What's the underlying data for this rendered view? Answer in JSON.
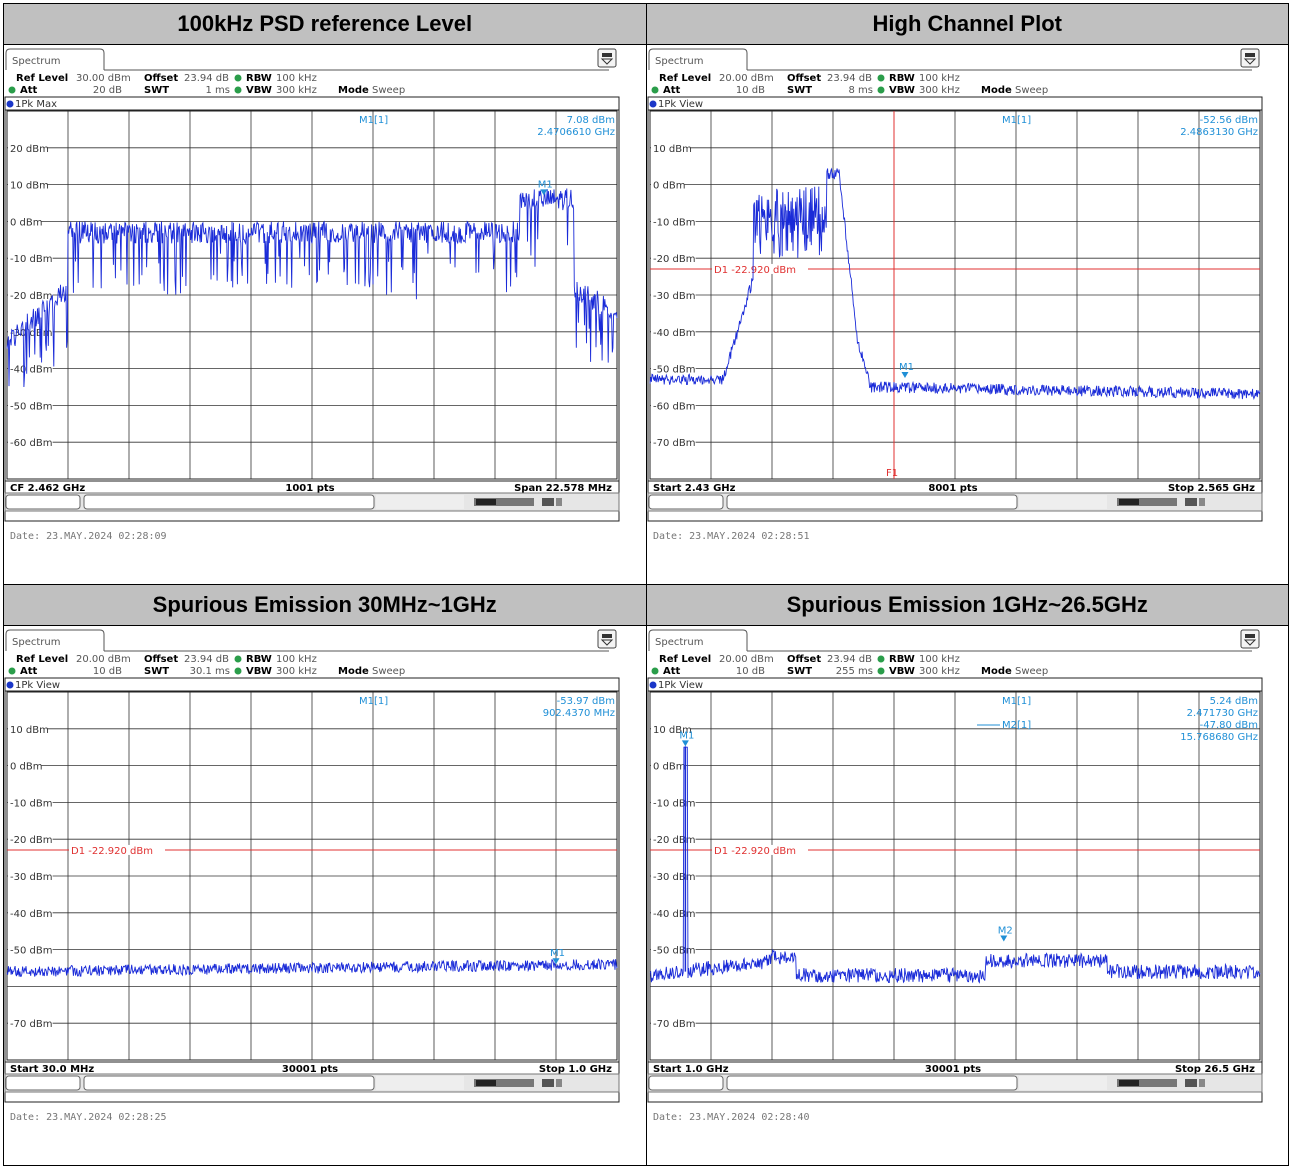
{
  "panels": [
    {
      "title": "100kHz PSD reference Level",
      "tab": "Spectrum",
      "ref_level_label": "Ref Level",
      "ref_level": "30.00 dBm",
      "offset_label": "Offset",
      "offset": "23.94 dB",
      "rbw_label": "RBW",
      "rbw": "100 kHz",
      "att_label": "Att",
      "att": "20 dB",
      "swt_label": "SWT",
      "swt": "1 ms",
      "vbw_label": "VBW",
      "vbw": "300 kHz",
      "mode_label": "Mode",
      "mode": "Sweep",
      "trace_label": "1Pk Max",
      "y_labels": [
        "",
        "20 dBm",
        "10 dBm",
        "0 dBm",
        "-10 dBm",
        "-20 dBm",
        "-30 dBm",
        "-40 dBm",
        "-50 dBm",
        "-60 dBm"
      ],
      "markers_info": [
        {
          "name": "M1[1]",
          "value": "7.08 dBm",
          "freq": "2.4706610 GHz"
        }
      ],
      "display_line": null,
      "f_line": null,
      "footer_left": "CF 2.462 GHz",
      "footer_center": "1001 pts",
      "footer_right": "Span 22.578 MHz",
      "date": "Date: 23.MAY.2024  02:28:09",
      "trace_kind": "psd",
      "marker_points": [
        {
          "label": "M1",
          "xf": 0.88,
          "y_db": 7.08
        }
      ],
      "top_db": 30
    },
    {
      "title": "High Channel Plot",
      "tab": "Spectrum",
      "ref_level_label": "Ref Level",
      "ref_level": "20.00 dBm",
      "offset_label": "Offset",
      "offset": "23.94 dB",
      "rbw_label": "RBW",
      "rbw": "100 kHz",
      "att_label": "Att",
      "att": "10 dB",
      "swt_label": "SWT",
      "swt": "8 ms",
      "vbw_label": "VBW",
      "vbw": "300 kHz",
      "mode_label": "Mode",
      "mode": "Sweep",
      "trace_label": "1Pk View",
      "y_labels": [
        "",
        "10 dBm",
        "0 dBm",
        "-10 dBm",
        "-20 dBm",
        "-30 dBm",
        "-40 dBm",
        "-50 dBm",
        "-60 dBm",
        "-70 dBm"
      ],
      "markers_info": [
        {
          "name": "M1[1]",
          "value": "-52.56 dBm",
          "freq": "2.4863130 GHz"
        }
      ],
      "display_line": {
        "label": "D1  -22.920 dBm",
        "db": -22.92
      },
      "f_line": {
        "label": "F1",
        "xf": 0.4
      },
      "footer_left": "Start 2.43 GHz",
      "footer_center": "8001 pts",
      "footer_right": "Stop 2.565 GHz",
      "date": "Date: 23.MAY.2024  02:28:51",
      "trace_kind": "band",
      "marker_points": [
        {
          "label": "M1",
          "xf": 0.418,
          "y_db": -52.56
        }
      ],
      "top_db": 20
    },
    {
      "title": "Spurious Emission 30MHz~1GHz",
      "tab": "Spectrum",
      "ref_level_label": "Ref Level",
      "ref_level": "20.00 dBm",
      "offset_label": "Offset",
      "offset": "23.94 dB",
      "rbw_label": "RBW",
      "rbw": "100 kHz",
      "att_label": "Att",
      "att": "10 dB",
      "swt_label": "SWT",
      "swt": "30.1 ms",
      "vbw_label": "VBW",
      "vbw": "300 kHz",
      "mode_label": "Mode",
      "mode": "Sweep",
      "trace_label": "1Pk View",
      "y_labels": [
        "",
        "10 dBm",
        "0 dBm",
        "-10 dBm",
        "-20 dBm",
        "-30 dBm",
        "-40 dBm",
        "-50 dBm",
        "",
        "-70 dBm"
      ],
      "markers_info": [
        {
          "name": "M1[1]",
          "value": "-53.97 dBm",
          "freq": "902.4370 MHz"
        }
      ],
      "display_line": {
        "label": "D1  -22.920 dBm",
        "db": -22.92
      },
      "f_line": null,
      "footer_left": "Start 30.0 MHz",
      "footer_center": "30001 pts",
      "footer_right": "Stop 1.0 GHz",
      "date": "Date: 23.MAY.2024  02:28:25",
      "trace_kind": "noise1",
      "marker_points": [
        {
          "label": "M1",
          "xf": 0.9,
          "y_db": -53.97
        }
      ],
      "top_db": 20
    },
    {
      "title": "Spurious Emission 1GHz~26.5GHz",
      "tab": "Spectrum",
      "ref_level_label": "Ref Level",
      "ref_level": "20.00 dBm",
      "offset_label": "Offset",
      "offset": "23.94 dB",
      "rbw_label": "RBW",
      "rbw": "100 kHz",
      "att_label": "Att",
      "att": "10 dB",
      "swt_label": "SWT",
      "swt": "255 ms",
      "vbw_label": "VBW",
      "vbw": "300 kHz",
      "mode_label": "Mode",
      "mode": "Sweep",
      "trace_label": "1Pk View",
      "y_labels": [
        "",
        "10 dBm",
        "0 dBm",
        "-10 dBm",
        "-20 dBm",
        "-30 dBm",
        "-40 dBm",
        "-50 dBm",
        "",
        "-70 dBm"
      ],
      "markers_info": [
        {
          "name": "M1[1]",
          "value": "5.24 dBm",
          "freq": "2.471730 GHz"
        },
        {
          "name": "M2[1]",
          "value": "-47.80 dBm",
          "freq": "15.768680 GHz"
        }
      ],
      "display_line": {
        "label": "D1  -22.920 dBm",
        "db": -22.92
      },
      "f_line": null,
      "footer_left": "Start 1.0 GHz",
      "footer_center": "30001 pts",
      "footer_right": "Stop 26.5 GHz",
      "date": "Date: 23.MAY.2024  02:28:40",
      "trace_kind": "noise2",
      "marker_points": [
        {
          "label": "M1",
          "xf": 0.058,
          "y_db": 5.24
        },
        {
          "label": "M2",
          "xf": 0.58,
          "y_db": -47.8
        }
      ],
      "top_db": 20
    }
  ]
}
